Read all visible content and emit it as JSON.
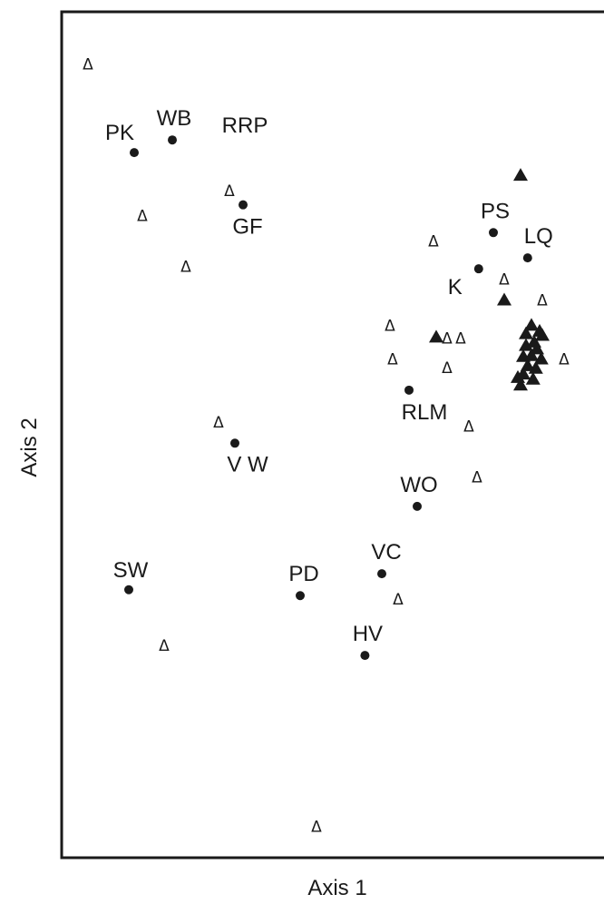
{
  "chart_data": {
    "type": "scatter",
    "title": "",
    "xlabel": "Axis 1",
    "ylabel": "Axis 2",
    "xlim": [
      0,
      100
    ],
    "ylim": [
      0,
      100
    ],
    "grid": false,
    "ticks": false,
    "legend": "none",
    "open_symbol": "Δ",
    "colors": {
      "ink": "#1a1a1a",
      "background": "#ffffff"
    },
    "series": [
      {
        "marker": "filled-circle",
        "points": [
          {
            "label": "PK",
            "x": 13,
            "y": 83.5
          },
          {
            "label": "WB",
            "x": 20,
            "y": 85
          },
          {
            "label": "RRP",
            "x": null,
            "y": null
          },
          {
            "label": "GF",
            "x": 33,
            "y": 77.3
          },
          {
            "label": "PS",
            "x": 79,
            "y": 74
          },
          {
            "label": "LQ",
            "x": 85.3,
            "y": 71
          },
          {
            "label": "K",
            "x": 76.3,
            "y": 69.7
          },
          {
            "label": "RLM",
            "x": 63.5,
            "y": 55.3
          },
          {
            "label": "V W",
            "x": 31.5,
            "y": 49
          },
          {
            "label": "WO",
            "x": 65,
            "y": 41.5
          },
          {
            "label": "VC",
            "x": 58.5,
            "y": 33.5
          },
          {
            "label": "SW",
            "x": 12,
            "y": 31.6
          },
          {
            "label": "PD",
            "x": 43.5,
            "y": 30.9
          },
          {
            "label": "HV",
            "x": 55.4,
            "y": 23.8
          }
        ]
      },
      {
        "marker": "open-triangle",
        "points": [
          {
            "x": 4.5,
            "y": 94
          },
          {
            "x": 14.5,
            "y": 76
          },
          {
            "x": 30.5,
            "y": 79
          },
          {
            "x": 22.5,
            "y": 70
          },
          {
            "x": 68,
            "y": 73
          },
          {
            "x": 81,
            "y": 68.5
          },
          {
            "x": 88,
            "y": 66
          },
          {
            "x": 60,
            "y": 63
          },
          {
            "x": 70.5,
            "y": 61.5
          },
          {
            "x": 73,
            "y": 61.5
          },
          {
            "x": 60.5,
            "y": 59
          },
          {
            "x": 70.5,
            "y": 58
          },
          {
            "x": 92,
            "y": 59
          },
          {
            "x": 74.5,
            "y": 51
          },
          {
            "x": 28.5,
            "y": 51.5
          },
          {
            "x": 76,
            "y": 45
          },
          {
            "x": 61.5,
            "y": 30.5
          },
          {
            "x": 18.5,
            "y": 25
          },
          {
            "x": 46.5,
            "y": 3.5
          }
        ]
      },
      {
        "marker": "filled-triangle",
        "points": [
          {
            "x": 84,
            "y": 80.8
          },
          {
            "x": 81,
            "y": 66
          },
          {
            "x": 68.5,
            "y": 61.6
          },
          {
            "x": 86,
            "y": 63
          },
          {
            "x": 87.5,
            "y": 62.3
          },
          {
            "x": 85,
            "y": 62
          },
          {
            "x": 86.5,
            "y": 61
          },
          {
            "x": 88,
            "y": 61.8
          },
          {
            "x": 85,
            "y": 60.6
          },
          {
            "x": 87,
            "y": 60.2
          },
          {
            "x": 84.5,
            "y": 59.3
          },
          {
            "x": 86,
            "y": 59.4
          },
          {
            "x": 87.8,
            "y": 59
          },
          {
            "x": 85.3,
            "y": 58.2
          },
          {
            "x": 86.8,
            "y": 57.9
          },
          {
            "x": 84.5,
            "y": 57.2
          },
          {
            "x": 86.3,
            "y": 56.6
          },
          {
            "x": 84,
            "y": 55.9
          },
          {
            "x": 83.5,
            "y": 56.8
          }
        ]
      }
    ]
  }
}
